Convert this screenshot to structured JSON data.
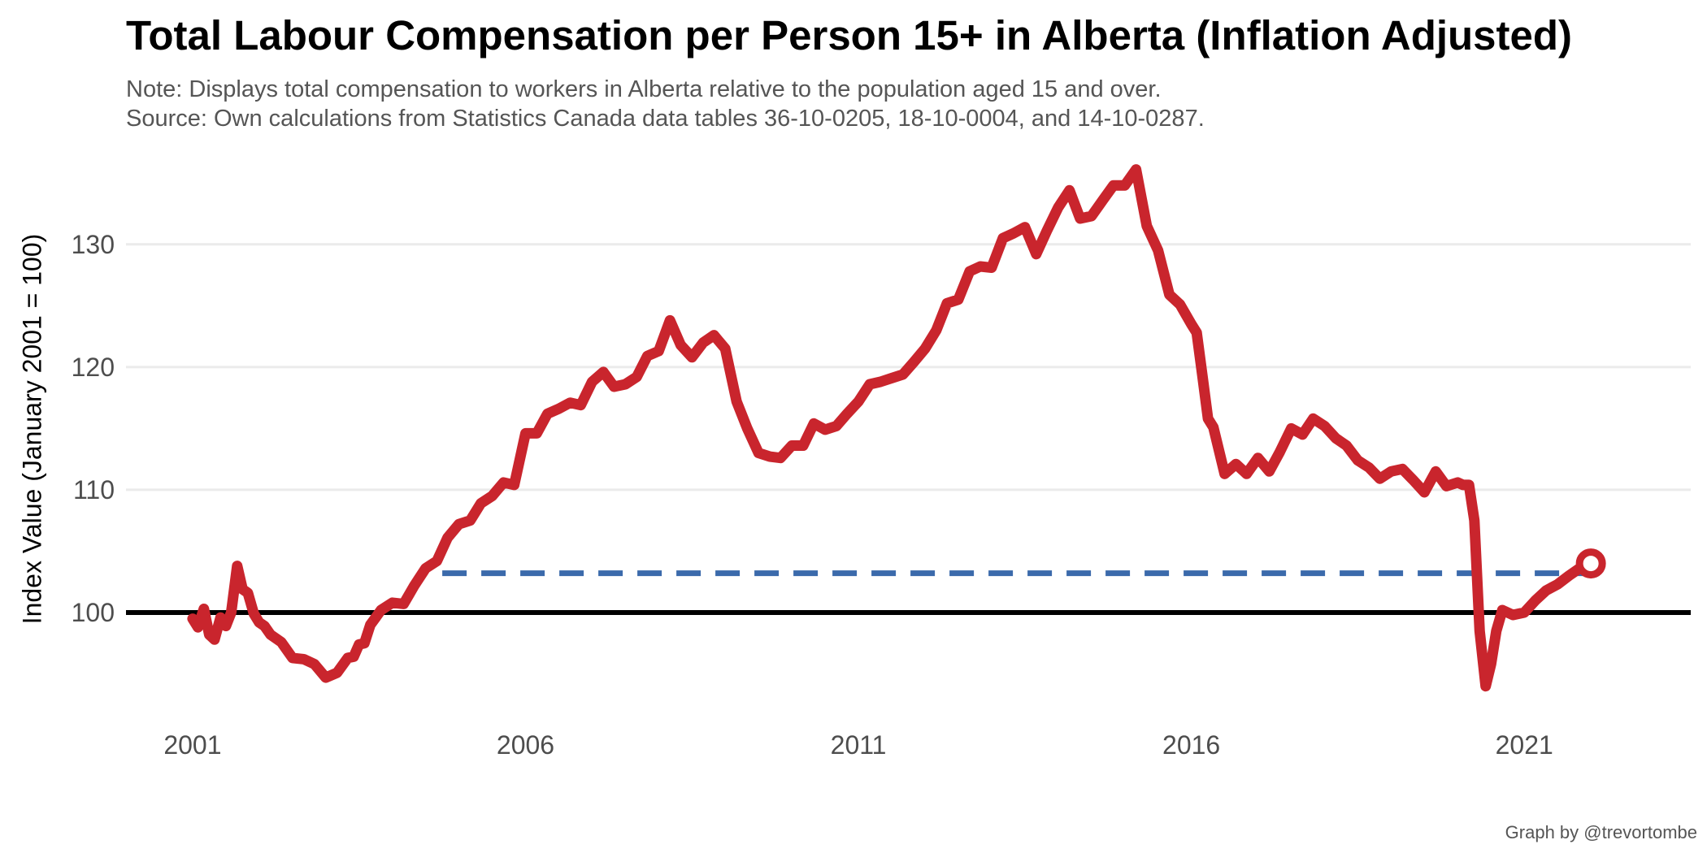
{
  "chart_data": {
    "type": "line",
    "title": "Total Labour Compensation per Person 15+ in Alberta (Inflation Adjusted)",
    "subtitle_note": "Note: Displays total compensation to workers in Alberta relative to the population aged 15 and over.",
    "subtitle_source": "Source: Own calculations from Statistics Canada data tables 36-10-0205, 18-10-0004, and 14-10-0287.",
    "xlabel": "",
    "ylabel": "Index Value (January 2001 = 100)",
    "caption": "Graph by @trevortombe",
    "xlim": [
      2000,
      2023.5
    ],
    "ylim": [
      91,
      137
    ],
    "x_ticks": [
      2001,
      2006,
      2011,
      2016,
      2021
    ],
    "x_tick_labels": [
      "2001",
      "2006",
      "2011",
      "2016",
      "2021"
    ],
    "y_ticks": [
      100,
      110,
      120,
      130
    ],
    "y_tick_labels": [
      "100",
      "110",
      "120",
      "130"
    ],
    "grid": "horizontal",
    "baseline": {
      "y": 100,
      "color": "#000000"
    },
    "reference_line": {
      "x_start": 2004.75,
      "x_end": 2022.0,
      "y": 103.2,
      "style": "dashed",
      "color": "#3b6aab"
    },
    "end_marker": {
      "x": 2022.0,
      "y": 104,
      "shape": "open-circle",
      "color": "#c9252d"
    },
    "series": [
      {
        "color": "#c9252d",
        "x": [
          2001.0,
          2001.08,
          2001.17,
          2001.25,
          2001.33,
          2001.42,
          2001.5,
          2001.58,
          2001.67,
          2001.75,
          2001.83,
          2001.92,
          2002.0,
          2002.08,
          2002.17,
          2002.33,
          2002.5,
          2002.67,
          2002.83,
          2003.0,
          2003.17,
          2003.33,
          2003.42,
          2003.5,
          2003.58,
          2003.67,
          2003.75,
          2003.83,
          2004.0,
          2004.17,
          2004.33,
          2004.5,
          2004.67,
          2004.83,
          2005.0,
          2005.17,
          2005.33,
          2005.5,
          2005.67,
          2005.83,
          2006.0,
          2006.17,
          2006.33,
          2006.5,
          2006.67,
          2006.83,
          2007.0,
          2007.17,
          2007.33,
          2007.5,
          2007.67,
          2007.83,
          2008.0,
          2008.17,
          2008.33,
          2008.5,
          2008.67,
          2008.83,
          2009.0,
          2009.17,
          2009.33,
          2009.5,
          2009.67,
          2009.83,
          2010.0,
          2010.17,
          2010.33,
          2010.5,
          2010.67,
          2010.83,
          2011.0,
          2011.17,
          2011.33,
          2011.5,
          2011.67,
          2011.83,
          2012.0,
          2012.17,
          2012.33,
          2012.5,
          2012.67,
          2012.83,
          2013.0,
          2013.17,
          2013.33,
          2013.5,
          2013.67,
          2013.83,
          2014.0,
          2014.17,
          2014.33,
          2014.5,
          2014.67,
          2014.83,
          2015.0,
          2015.17,
          2015.33,
          2015.5,
          2015.67,
          2015.83,
          2016.0,
          2016.08,
          2016.17,
          2016.25,
          2016.33,
          2016.5,
          2016.67,
          2016.83,
          2017.0,
          2017.17,
          2017.33,
          2017.5,
          2017.67,
          2017.83,
          2018.0,
          2018.17,
          2018.33,
          2018.5,
          2018.67,
          2018.83,
          2019.0,
          2019.17,
          2019.33,
          2019.5,
          2019.67,
          2019.83,
          2020.0,
          2020.08,
          2020.17,
          2020.25,
          2020.33,
          2020.42,
          2020.5,
          2020.58,
          2020.67,
          2020.83,
          2021.0,
          2021.17,
          2021.33,
          2021.5,
          2021.67,
          2021.83,
          2022.0
        ],
        "values": [
          99.5,
          98.8,
          100.3,
          98.2,
          97.8,
          99.6,
          98.9,
          100.0,
          103.8,
          101.9,
          101.6,
          99.9,
          99.2,
          98.9,
          98.2,
          97.6,
          96.3,
          96.2,
          95.8,
          94.7,
          95.1,
          96.3,
          96.4,
          97.4,
          97.5,
          99.0,
          99.6,
          100.2,
          100.8,
          100.7,
          102.2,
          103.6,
          104.2,
          106.1,
          107.2,
          107.5,
          108.9,
          109.5,
          110.6,
          110.4,
          114.6,
          114.6,
          116.2,
          116.6,
          117.1,
          116.9,
          118.8,
          119.6,
          118.4,
          118.6,
          119.2,
          120.9,
          121.3,
          123.8,
          121.8,
          120.8,
          122.0,
          122.6,
          121.5,
          117.2,
          115.0,
          113.0,
          112.7,
          112.6,
          113.6,
          113.6,
          115.4,
          114.9,
          115.2,
          116.2,
          117.2,
          118.6,
          118.8,
          119.1,
          119.4,
          120.4,
          121.5,
          123.0,
          125.2,
          125.5,
          127.8,
          128.2,
          128.1,
          130.5,
          130.9,
          131.4,
          129.2,
          131.1,
          133.0,
          134.4,
          132.1,
          132.3,
          133.6,
          134.8,
          134.8,
          136.1,
          131.5,
          129.5,
          125.9,
          125.1,
          123.5,
          122.8,
          119.1,
          115.8,
          115.1,
          111.3,
          112.1,
          111.3,
          112.6,
          111.5,
          113.1,
          115.0,
          114.5,
          115.8,
          115.2,
          114.2,
          113.6,
          112.4,
          111.8,
          110.9,
          111.5,
          111.7,
          110.8,
          109.8,
          111.5,
          110.3,
          110.6,
          110.4,
          110.4,
          107.5,
          98.5,
          94.0,
          95.8,
          98.5,
          100.2,
          99.8,
          100.0,
          101.0,
          101.8,
          102.3,
          103.0,
          103.6,
          104.0
        ]
      }
    ]
  }
}
